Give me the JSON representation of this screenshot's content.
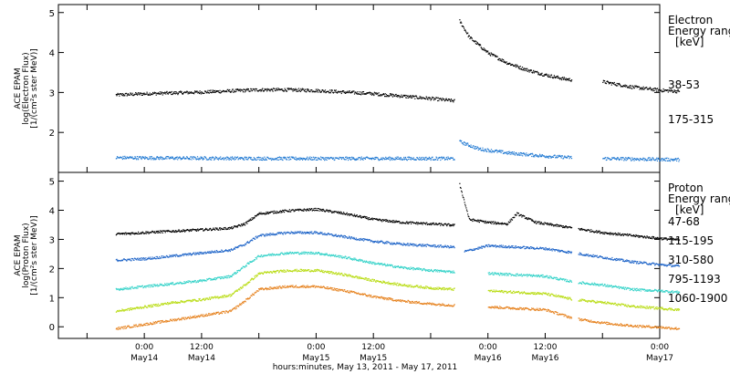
{
  "chart_data": [
    {
      "type": "scatter",
      "panel": "electron",
      "ylabel": [
        "ACE EPAM",
        "log(Electron Flux)",
        "[1/(cm²s ster MeV)]"
      ],
      "ylim": [
        1.0,
        5.2
      ],
      "yticks": [
        2,
        3,
        4,
        5
      ],
      "legend_title": [
        "Electron",
        "Energy ranges",
        "[keV]"
      ],
      "series": [
        {
          "name": "38-53",
          "color": "#000000",
          "points": [
            [
              6,
              2.95
            ],
            [
              12,
              2.98
            ],
            [
              18,
              3.0
            ],
            [
              24,
              3.02
            ],
            [
              30,
              3.05
            ],
            [
              36,
              3.08
            ],
            [
              42,
              3.08
            ],
            [
              48,
              3.06
            ],
            [
              54,
              3.02
            ],
            [
              60,
              2.98
            ],
            [
              66,
              2.92
            ],
            [
              72,
              2.86
            ],
            [
              77,
              2.8
            ],
            [
              78,
              4.8
            ],
            [
              80,
              4.4
            ],
            [
              84,
              4.0
            ],
            [
              88,
              3.75
            ],
            [
              92,
              3.58
            ],
            [
              96,
              3.45
            ],
            [
              100,
              3.35
            ],
            [
              102,
              3.32
            ],
            [
              108,
              3.28
            ],
            [
              114,
              3.15
            ],
            [
              120,
              3.07
            ],
            [
              124,
              3.04
            ]
          ]
        },
        {
          "name": "175-315",
          "color": "#1e78d2",
          "points": [
            [
              6,
              1.38
            ],
            [
              20,
              1.37
            ],
            [
              40,
              1.36
            ],
            [
              60,
              1.36
            ],
            [
              77,
              1.36
            ],
            [
              78,
              1.78
            ],
            [
              82,
              1.6
            ],
            [
              88,
              1.5
            ],
            [
              96,
              1.42
            ],
            [
              102,
              1.38
            ],
            [
              108,
              1.36
            ],
            [
              124,
              1.33
            ]
          ]
        }
      ]
    },
    {
      "type": "scatter",
      "panel": "proton",
      "ylabel": [
        "ACE EPAM",
        "log(Proton Flux)",
        "[1/(cm²s ster MeV)]"
      ],
      "ylim": [
        -0.4,
        5.3
      ],
      "yticks": [
        0,
        1,
        2,
        3,
        4,
        5
      ],
      "legend_title": [
        "Proton",
        "Energy ranges",
        "[keV]"
      ],
      "x_label": "hours:minutes, May 13, 2011 - May 17, 2011",
      "x_ticks": [
        {
          "hour": 0,
          "time": "",
          "date": ""
        },
        {
          "hour": 12,
          "time": "0:00",
          "date": "May14"
        },
        {
          "hour": 24,
          "time": "12:00",
          "date": "May14"
        },
        {
          "hour": 36,
          "time": "",
          "date": ""
        },
        {
          "hour": 48,
          "time": "0:00",
          "date": "May15"
        },
        {
          "hour": 60,
          "time": "12:00",
          "date": "May15"
        },
        {
          "hour": 72,
          "time": "",
          "date": ""
        },
        {
          "hour": 84,
          "time": "0:00",
          "date": "May16"
        },
        {
          "hour": 96,
          "time": "12:00",
          "date": "May16"
        },
        {
          "hour": 108,
          "time": "",
          "date": ""
        },
        {
          "hour": 120,
          "time": "0:00",
          "date": "May17"
        }
      ],
      "series": [
        {
          "name": "47-68",
          "color": "#000000",
          "points": [
            [
              6,
              3.2
            ],
            [
              12,
              3.25
            ],
            [
              18,
              3.3
            ],
            [
              24,
              3.35
            ],
            [
              30,
              3.4
            ],
            [
              33,
              3.55
            ],
            [
              36,
              3.9
            ],
            [
              42,
              4.0
            ],
            [
              48,
              4.05
            ],
            [
              54,
              3.9
            ],
            [
              60,
              3.7
            ],
            [
              66,
              3.6
            ],
            [
              72,
              3.55
            ],
            [
              77,
              3.5
            ],
            [
              78,
              4.9
            ],
            [
              80,
              3.7
            ],
            [
              84,
              3.6
            ],
            [
              88,
              3.55
            ],
            [
              90,
              3.9
            ],
            [
              94,
              3.6
            ],
            [
              98,
              3.5
            ],
            [
              102,
              3.4
            ],
            [
              108,
              3.25
            ],
            [
              114,
              3.15
            ],
            [
              120,
              3.05
            ],
            [
              124,
              3.0
            ]
          ]
        },
        {
          "name": "115-195",
          "color": "#1e64c8",
          "points": [
            [
              6,
              2.3
            ],
            [
              12,
              2.35
            ],
            [
              18,
              2.45
            ],
            [
              24,
              2.55
            ],
            [
              30,
              2.65
            ],
            [
              33,
              2.85
            ],
            [
              36,
              3.15
            ],
            [
              42,
              3.25
            ],
            [
              48,
              3.25
            ],
            [
              54,
              3.1
            ],
            [
              60,
              2.95
            ],
            [
              66,
              2.85
            ],
            [
              72,
              2.8
            ],
            [
              77,
              2.75
            ],
            [
              79,
              2.6
            ],
            [
              84,
              2.8
            ],
            [
              90,
              2.75
            ],
            [
              96,
              2.7
            ],
            [
              102,
              2.55
            ],
            [
              108,
              2.4
            ],
            [
              114,
              2.25
            ],
            [
              120,
              2.15
            ],
            [
              124,
              2.1
            ]
          ]
        },
        {
          "name": "310-580",
          "color": "#32d2c8",
          "points": [
            [
              6,
              1.3
            ],
            [
              12,
              1.4
            ],
            [
              18,
              1.5
            ],
            [
              24,
              1.6
            ],
            [
              30,
              1.75
            ],
            [
              33,
              2.1
            ],
            [
              36,
              2.45
            ],
            [
              42,
              2.55
            ],
            [
              48,
              2.55
            ],
            [
              54,
              2.4
            ],
            [
              60,
              2.2
            ],
            [
              66,
              2.05
            ],
            [
              72,
              1.95
            ],
            [
              77,
              1.9
            ],
            [
              84,
              1.85
            ],
            [
              90,
              1.8
            ],
            [
              96,
              1.75
            ],
            [
              102,
              1.55
            ],
            [
              108,
              1.45
            ],
            [
              114,
              1.3
            ],
            [
              120,
              1.25
            ],
            [
              124,
              1.2
            ]
          ]
        },
        {
          "name": "795-1193",
          "color": "#b9dc14",
          "points": [
            [
              6,
              0.55
            ],
            [
              12,
              0.7
            ],
            [
              18,
              0.85
            ],
            [
              24,
              0.95
            ],
            [
              30,
              1.1
            ],
            [
              33,
              1.45
            ],
            [
              36,
              1.85
            ],
            [
              42,
              1.95
            ],
            [
              48,
              1.95
            ],
            [
              54,
              1.8
            ],
            [
              60,
              1.6
            ],
            [
              66,
              1.45
            ],
            [
              72,
              1.35
            ],
            [
              77,
              1.3
            ],
            [
              84,
              1.25
            ],
            [
              90,
              1.2
            ],
            [
              96,
              1.15
            ],
            [
              102,
              0.95
            ],
            [
              108,
              0.85
            ],
            [
              114,
              0.72
            ],
            [
              120,
              0.65
            ],
            [
              124,
              0.6
            ]
          ]
        },
        {
          "name": "1060-1900",
          "color": "#e6821e",
          "points": [
            [
              6,
              -0.05
            ],
            [
              12,
              0.1
            ],
            [
              18,
              0.25
            ],
            [
              24,
              0.4
            ],
            [
              30,
              0.55
            ],
            [
              33,
              0.9
            ],
            [
              36,
              1.3
            ],
            [
              42,
              1.4
            ],
            [
              48,
              1.4
            ],
            [
              54,
              1.25
            ],
            [
              60,
              1.05
            ],
            [
              66,
              0.9
            ],
            [
              72,
              0.8
            ],
            [
              77,
              0.75
            ],
            [
              84,
              0.7
            ],
            [
              90,
              0.65
            ],
            [
              96,
              0.6
            ],
            [
              102,
              0.3
            ],
            [
              108,
              0.15
            ],
            [
              114,
              0.05
            ],
            [
              120,
              0.0
            ],
            [
              124,
              -0.05
            ]
          ]
        }
      ]
    }
  ]
}
